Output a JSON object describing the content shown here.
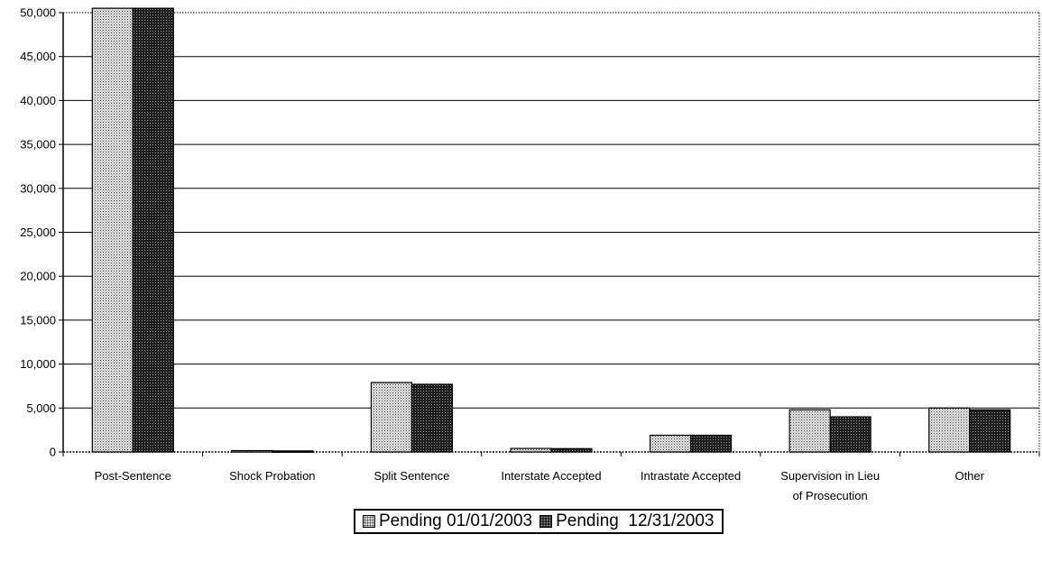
{
  "chart_data": {
    "type": "bar",
    "categories": [
      [
        "Post-Sentence"
      ],
      [
        "Shock Probation"
      ],
      [
        "Split Sentence"
      ],
      [
        "Interstate Accepted"
      ],
      [
        "Intrastate Accepted"
      ],
      [
        "Supervision in Lieu",
        "of Prosecution"
      ],
      [
        "Other"
      ]
    ],
    "series": [
      {
        "name": "Pending 01/01/2003",
        "values": [
          50500,
          150,
          7900,
          400,
          1900,
          4800,
          5000
        ],
        "pattern": "light"
      },
      {
        "name": "Pending  12/31/2003",
        "values": [
          50500,
          120,
          7700,
          380,
          1900,
          4000,
          4800
        ],
        "pattern": "dark"
      }
    ],
    "ylim": [
      0,
      50000
    ],
    "yticks": [
      "0",
      "5,000",
      "10,000",
      "15,000",
      "20,000",
      "25,000",
      "30,000",
      "35,000",
      "40,000",
      "45,000",
      "50,000"
    ],
    "grid": true,
    "legend_position": "bottom",
    "colors": {
      "light_fill": "#d8d8d8",
      "dark_fill": "#222222",
      "axis": "#000000"
    }
  }
}
